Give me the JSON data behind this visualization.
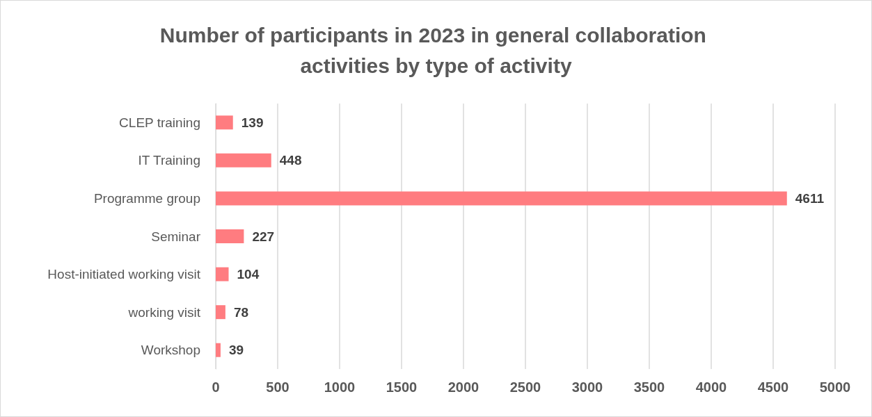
{
  "chart_data": {
    "type": "bar",
    "orientation": "horizontal",
    "title": "Number of participants in 2023 in general collaboration activities by type of activity",
    "categories": [
      "CLEP training",
      "IT Training",
      "Programme group",
      "Seminar",
      "Host-initiated working visit",
      "working visit",
      "Workshop"
    ],
    "values": [
      139,
      448,
      4611,
      227,
      104,
      78,
      39
    ],
    "color": "#ff7c80",
    "xlim": [
      0,
      5000
    ],
    "xticks": [
      0,
      500,
      1000,
      1500,
      2000,
      2500,
      3000,
      3500,
      4000,
      4500,
      5000
    ],
    "grid": "x",
    "data_labels": true
  }
}
